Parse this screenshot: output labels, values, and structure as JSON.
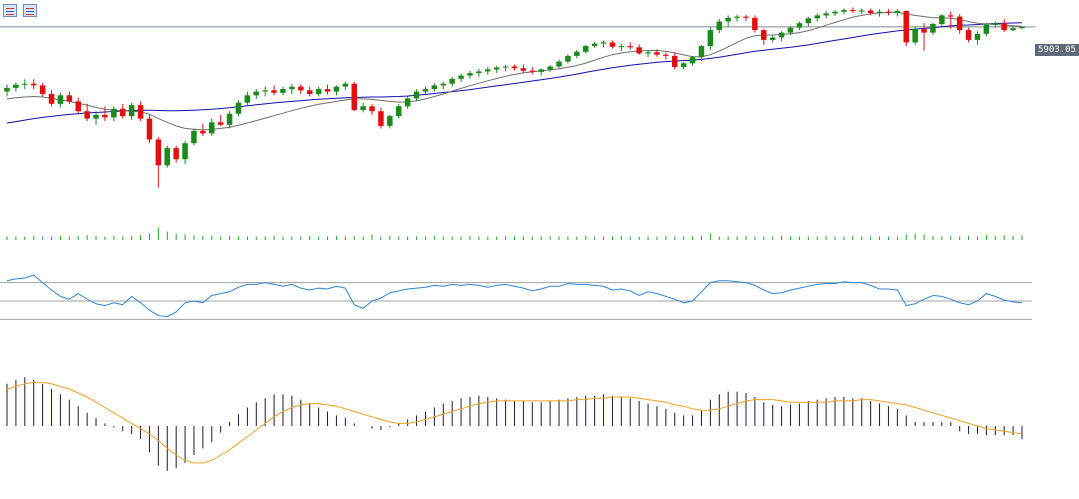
{
  "toolbar": {
    "icons": [
      "chart-list-icon",
      "chart-template-icon"
    ]
  },
  "price_label": "5903.05",
  "colors": {
    "bull": "#1a8a1a",
    "bear": "#e01010",
    "ma_fast": "#707070",
    "ma_slow": "#1010b0",
    "volume": "#22a822",
    "rsi": "#2f86d6",
    "rsi_levels": "#a0a0a0",
    "macd_hist": "#1a1a40",
    "macd_signal": "#f0a020",
    "price_line": "#7a8794"
  },
  "chart_data": [
    {
      "type": "candlestick",
      "name": "price",
      "current_price": 5903.05,
      "ylim": [
        5150,
        5980
      ],
      "ohlc": [
        [
          5640,
          5668,
          5620,
          5655
        ],
        [
          5655,
          5678,
          5640,
          5668
        ],
        [
          5668,
          5690,
          5650,
          5672
        ],
        [
          5672,
          5690,
          5650,
          5665
        ],
        [
          5665,
          5675,
          5620,
          5630
        ],
        [
          5630,
          5645,
          5580,
          5590
        ],
        [
          5590,
          5635,
          5575,
          5625
        ],
        [
          5625,
          5640,
          5590,
          5600
        ],
        [
          5600,
          5615,
          5550,
          5560
        ],
        [
          5560,
          5590,
          5520,
          5530
        ],
        [
          5530,
          5560,
          5505,
          5545
        ],
        [
          5545,
          5580,
          5520,
          5535
        ],
        [
          5535,
          5580,
          5520,
          5570
        ],
        [
          5570,
          5590,
          5530,
          5540
        ],
        [
          5540,
          5595,
          5525,
          5585
        ],
        [
          5585,
          5600,
          5520,
          5530
        ],
        [
          5530,
          5545,
          5430,
          5445
        ],
        [
          5445,
          5455,
          5250,
          5340
        ],
        [
          5340,
          5420,
          5330,
          5410
        ],
        [
          5410,
          5420,
          5350,
          5365
        ],
        [
          5365,
          5440,
          5345,
          5430
        ],
        [
          5430,
          5490,
          5420,
          5480
        ],
        [
          5480,
          5510,
          5460,
          5470
        ],
        [
          5470,
          5530,
          5460,
          5515
        ],
        [
          5515,
          5545,
          5500,
          5505
        ],
        [
          5505,
          5560,
          5490,
          5550
        ],
        [
          5550,
          5605,
          5540,
          5595
        ],
        [
          5595,
          5640,
          5585,
          5625
        ],
        [
          5625,
          5650,
          5610,
          5640
        ],
        [
          5640,
          5660,
          5620,
          5645
        ],
        [
          5645,
          5665,
          5625,
          5635
        ],
        [
          5635,
          5660,
          5625,
          5650
        ],
        [
          5650,
          5672,
          5630,
          5660
        ],
        [
          5660,
          5670,
          5630,
          5645
        ],
        [
          5645,
          5660,
          5620,
          5630
        ],
        [
          5630,
          5660,
          5620,
          5650
        ],
        [
          5650,
          5668,
          5628,
          5640
        ],
        [
          5640,
          5665,
          5625,
          5660
        ],
        [
          5660,
          5680,
          5645,
          5672
        ],
        [
          5672,
          5680,
          5560,
          5565
        ],
        [
          5565,
          5595,
          5555,
          5580
        ],
        [
          5580,
          5590,
          5545,
          5560
        ],
        [
          5560,
          5575,
          5490,
          5500
        ],
        [
          5500,
          5545,
          5490,
          5540
        ],
        [
          5540,
          5590,
          5530,
          5580
        ],
        [
          5580,
          5620,
          5570,
          5612
        ],
        [
          5612,
          5650,
          5600,
          5640
        ],
        [
          5640,
          5660,
          5625,
          5650
        ],
        [
          5650,
          5675,
          5640,
          5665
        ],
        [
          5665,
          5680,
          5650,
          5672
        ],
        [
          5672,
          5700,
          5660,
          5692
        ],
        [
          5692,
          5712,
          5680,
          5705
        ],
        [
          5705,
          5725,
          5692,
          5715
        ],
        [
          5715,
          5732,
          5700,
          5722
        ],
        [
          5722,
          5740,
          5708,
          5730
        ],
        [
          5730,
          5745,
          5715,
          5738
        ],
        [
          5738,
          5748,
          5722,
          5742
        ],
        [
          5742,
          5750,
          5725,
          5735
        ],
        [
          5735,
          5750,
          5715,
          5725
        ],
        [
          5725,
          5740,
          5710,
          5720
        ],
        [
          5720,
          5735,
          5705,
          5730
        ],
        [
          5730,
          5748,
          5720,
          5742
        ],
        [
          5742,
          5770,
          5735,
          5762
        ],
        [
          5762,
          5792,
          5755,
          5785
        ],
        [
          5785,
          5810,
          5775,
          5802
        ],
        [
          5802,
          5830,
          5795,
          5825
        ],
        [
          5825,
          5842,
          5818,
          5835
        ],
        [
          5835,
          5848,
          5820,
          5840
        ],
        [
          5840,
          5848,
          5815,
          5822
        ],
        [
          5822,
          5835,
          5805,
          5825
        ],
        [
          5825,
          5840,
          5810,
          5820
        ],
        [
          5820,
          5832,
          5790,
          5795
        ],
        [
          5795,
          5810,
          5780,
          5800
        ],
        [
          5800,
          5812,
          5782,
          5790
        ],
        [
          5790,
          5800,
          5770,
          5785
        ],
        [
          5785,
          5800,
          5730,
          5740
        ],
        [
          5740,
          5760,
          5730,
          5755
        ],
        [
          5755,
          5785,
          5745,
          5780
        ],
        [
          5780,
          5830,
          5765,
          5825
        ],
        [
          5825,
          5905,
          5810,
          5890
        ],
        [
          5890,
          5935,
          5878,
          5925
        ],
        [
          5925,
          5950,
          5905,
          5940
        ],
        [
          5940,
          5952,
          5925,
          5945
        ],
        [
          5945,
          5952,
          5928,
          5940
        ],
        [
          5940,
          5950,
          5880,
          5890
        ],
        [
          5890,
          5895,
          5830,
          5850
        ],
        [
          5850,
          5870,
          5840,
          5860
        ],
        [
          5860,
          5885,
          5845,
          5880
        ],
        [
          5880,
          5905,
          5870,
          5900
        ],
        [
          5900,
          5925,
          5890,
          5918
        ],
        [
          5918,
          5945,
          5905,
          5938
        ],
        [
          5938,
          5958,
          5925,
          5950
        ],
        [
          5950,
          5968,
          5938,
          5958
        ],
        [
          5958,
          5972,
          5948,
          5965
        ],
        [
          5965,
          5978,
          5955,
          5972
        ],
        [
          5972,
          5982,
          5960,
          5968
        ],
        [
          5968,
          5978,
          5955,
          5970
        ],
        [
          5970,
          5978,
          5950,
          5960
        ],
        [
          5960,
          5975,
          5945,
          5965
        ],
        [
          5965,
          5975,
          5950,
          5960
        ],
        [
          5960,
          5975,
          5945,
          5968
        ],
        [
          5968,
          5970,
          5825,
          5840
        ],
        [
          5840,
          5905,
          5830,
          5895
        ],
        [
          5895,
          5920,
          5805,
          5880
        ],
        [
          5880,
          5920,
          5870,
          5915
        ],
        [
          5915,
          5955,
          5905,
          5950
        ],
        [
          5950,
          5965,
          5895,
          5945
        ],
        [
          5945,
          5955,
          5875,
          5890
        ],
        [
          5890,
          5900,
          5840,
          5850
        ],
        [
          5850,
          5885,
          5830,
          5875
        ],
        [
          5875,
          5920,
          5865,
          5912
        ],
        [
          5912,
          5925,
          5900,
          5918
        ],
        [
          5918,
          5935,
          5882,
          5890
        ],
        [
          5890,
          5905,
          5885,
          5898
        ],
        [
          5898,
          5905,
          5893,
          5903
        ]
      ]
    },
    {
      "type": "line",
      "name": "moving-average-fast",
      "values": [
        5610,
        5615,
        5618,
        5620,
        5618,
        5612,
        5606,
        5600,
        5592,
        5585,
        5575,
        5568,
        5565,
        5562,
        5560,
        5558,
        5548,
        5530,
        5515,
        5500,
        5490,
        5486,
        5484,
        5486,
        5490,
        5495,
        5503,
        5512,
        5522,
        5532,
        5542,
        5552,
        5562,
        5572,
        5580,
        5588,
        5594,
        5600,
        5606,
        5610,
        5610,
        5608,
        5604,
        5600,
        5597,
        5598,
        5603,
        5610,
        5620,
        5630,
        5642,
        5653,
        5664,
        5674,
        5684,
        5693,
        5702,
        5710,
        5716,
        5720,
        5724,
        5728,
        5733,
        5739,
        5746,
        5756,
        5768,
        5780,
        5790,
        5797,
        5802,
        5805,
        5807,
        5807,
        5804,
        5797,
        5789,
        5782,
        5782,
        5790,
        5805,
        5822,
        5840,
        5857,
        5867,
        5870,
        5870,
        5872,
        5875,
        5880,
        5888,
        5898,
        5910,
        5921,
        5932,
        5943,
        5950,
        5956,
        5960,
        5962,
        5963,
        5955,
        5950,
        5945,
        5940,
        5940,
        5938,
        5933,
        5925,
        5918,
        5915,
        5913,
        5910,
        5908,
        5905
      ]
    },
    {
      "type": "line",
      "name": "moving-average-slow",
      "values": [
        5512,
        5518,
        5524,
        5530,
        5535,
        5539,
        5543,
        5547,
        5550,
        5553,
        5555,
        5557,
        5559,
        5561,
        5563,
        5564,
        5564,
        5563,
        5562,
        5562,
        5563,
        5564,
        5566,
        5568,
        5571,
        5574,
        5578,
        5582,
        5586,
        5590,
        5594,
        5597,
        5600,
        5603,
        5606,
        5609,
        5611,
        5613,
        5615,
        5616,
        5617,
        5618,
        5618,
        5619,
        5620,
        5622,
        5625,
        5628,
        5632,
        5636,
        5640,
        5644,
        5648,
        5653,
        5658,
        5663,
        5668,
        5673,
        5678,
        5683,
        5688,
        5693,
        5699,
        5705,
        5711,
        5718,
        5725,
        5731,
        5737,
        5742,
        5747,
        5751,
        5755,
        5759,
        5762,
        5764,
        5766,
        5768,
        5771,
        5775,
        5780,
        5786,
        5792,
        5798,
        5804,
        5808,
        5812,
        5816,
        5820,
        5825,
        5830,
        5836,
        5842,
        5848,
        5854,
        5860,
        5866,
        5872,
        5877,
        5882,
        5887,
        5890,
        5894,
        5897,
        5900,
        5904,
        5907,
        5910,
        5911,
        5913,
        5915,
        5917,
        5918,
        5919,
        5920
      ]
    },
    {
      "type": "bar",
      "name": "volume",
      "ylim": [
        0,
        40
      ],
      "values": [
        5,
        5,
        5,
        6,
        5,
        5,
        6,
        5,
        6,
        7,
        6,
        5,
        6,
        5,
        6,
        7,
        9,
        18,
        12,
        9,
        8,
        7,
        6,
        6,
        5,
        6,
        5,
        5,
        5,
        5,
        6,
        5,
        5,
        5,
        6,
        5,
        5,
        6,
        5,
        6,
        5,
        8,
        5,
        6,
        5,
        5,
        5,
        5,
        6,
        5,
        5,
        5,
        6,
        5,
        5,
        5,
        6,
        5,
        5,
        5,
        5,
        6,
        5,
        5,
        5,
        6,
        5,
        5,
        5,
        6,
        5,
        5,
        5,
        5,
        6,
        5,
        5,
        5,
        6,
        9,
        5,
        5,
        5,
        6,
        5,
        5,
        5,
        6,
        5,
        5,
        5,
        5,
        6,
        5,
        5,
        6,
        5,
        5,
        5,
        5,
        5,
        8,
        9,
        8,
        6,
        5,
        6,
        5,
        6,
        5,
        7,
        6,
        7,
        6,
        7
      ]
    },
    {
      "type": "line",
      "name": "rsi",
      "ylim": [
        0,
        100
      ],
      "levels": [
        30,
        50,
        70
      ],
      "values": [
        72,
        74,
        75,
        78,
        70,
        62,
        55,
        52,
        58,
        52,
        47,
        45,
        48,
        46,
        55,
        48,
        40,
        34,
        33,
        38,
        48,
        50,
        48,
        56,
        58,
        60,
        65,
        68,
        68,
        70,
        68,
        66,
        68,
        64,
        62,
        64,
        63,
        66,
        64,
        46,
        42,
        50,
        53,
        59,
        61,
        63,
        64,
        65,
        67,
        66,
        68,
        67,
        68,
        67,
        65,
        67,
        68,
        66,
        64,
        61,
        63,
        66,
        66,
        69,
        68,
        68,
        67,
        66,
        62,
        63,
        61,
        56,
        60,
        58,
        55,
        52,
        48,
        50,
        60,
        70,
        72,
        72,
        71,
        70,
        67,
        62,
        58,
        59,
        62,
        64,
        66,
        68,
        69,
        69,
        71,
        70,
        70,
        67,
        63,
        63,
        62,
        45,
        47,
        52,
        56,
        55,
        52,
        48,
        46,
        50,
        58,
        55,
        51,
        49,
        48
      ]
    },
    {
      "type": "bar",
      "name": "macd",
      "ylim": [
        -50,
        50
      ],
      "values": [
        32,
        35,
        37,
        35,
        32,
        28,
        24,
        20,
        15,
        10,
        6,
        2,
        -1,
        -4,
        -6,
        -10,
        -20,
        -30,
        -34,
        -32,
        -28,
        -22,
        -17,
        -12,
        -5,
        3,
        9,
        14,
        18,
        21,
        24,
        24,
        23,
        20,
        17,
        14,
        11,
        8,
        6,
        2,
        0,
        -2,
        -3,
        -1,
        2,
        5,
        8,
        11,
        14,
        17,
        19,
        21,
        22,
        23,
        22,
        21,
        20,
        19,
        19,
        18,
        18,
        19,
        20,
        21,
        22,
        23,
        23,
        24,
        23,
        22,
        21,
        19,
        17,
        15,
        13,
        10,
        8,
        8,
        12,
        20,
        24,
        26,
        26,
        25,
        22,
        18,
        16,
        15,
        16,
        17,
        19,
        20,
        21,
        22,
        22,
        21,
        21,
        19,
        17,
        15,
        13,
        8,
        3,
        3,
        3,
        3,
        3,
        -4,
        -6,
        -6,
        -7,
        -7,
        -7,
        -7,
        -10
      ]
    },
    {
      "type": "line",
      "name": "macd-signal",
      "values": [
        28,
        30,
        32,
        33,
        33,
        32,
        30,
        28,
        25,
        22,
        18,
        14,
        10,
        6,
        2,
        -2,
        -6,
        -11,
        -17,
        -22,
        -26,
        -28,
        -28,
        -26,
        -22,
        -18,
        -13,
        -8,
        -3,
        2,
        7,
        11,
        14,
        16,
        17,
        17,
        16,
        15,
        13,
        11,
        9,
        7,
        5,
        3,
        2,
        2,
        3,
        5,
        7,
        9,
        11,
        13,
        15,
        17,
        18,
        19,
        19,
        19,
        19,
        19,
        19,
        19,
        19,
        19,
        20,
        20,
        21,
        21,
        22,
        22,
        22,
        21,
        20,
        19,
        18,
        16,
        15,
        13,
        12,
        12,
        13,
        15,
        17,
        19,
        20,
        20,
        20,
        19,
        18,
        18,
        18,
        18,
        18,
        19,
        19,
        19,
        20,
        20,
        19,
        18,
        17,
        16,
        14,
        12,
        10,
        8,
        6,
        4,
        2,
        0,
        -2,
        -3,
        -4,
        -5,
        -6
      ]
    }
  ]
}
